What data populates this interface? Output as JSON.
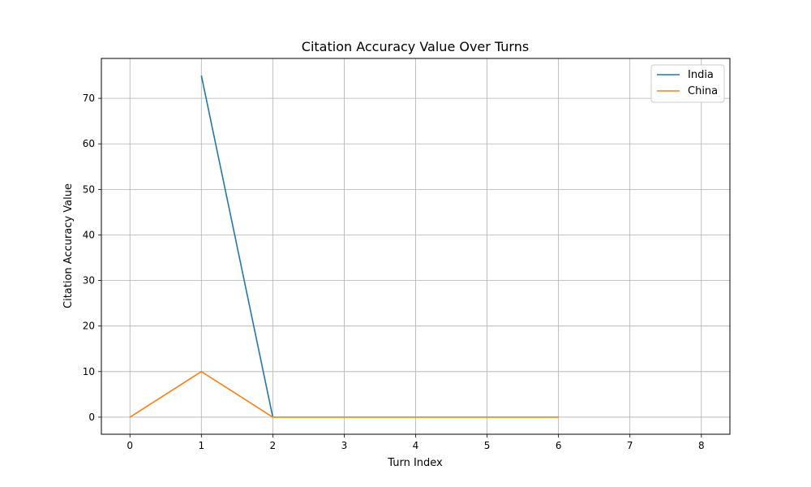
{
  "chart_data": {
    "type": "line",
    "title": "Citation Accuracy Value Over Turns",
    "xlabel": "Turn Index",
    "ylabel": "Citation Accuracy Value",
    "xlim": [
      -0.4,
      8.4
    ],
    "ylim": [
      -3.75,
      78.75
    ],
    "xticks": [
      0,
      1,
      2,
      3,
      4,
      5,
      6,
      7,
      8
    ],
    "yticks": [
      0,
      10,
      20,
      30,
      40,
      50,
      60,
      70
    ],
    "grid": true,
    "legend_position": "top-right",
    "series": [
      {
        "name": "India",
        "color": "#1f77b4",
        "x": [
          1,
          2
        ],
        "y": [
          75,
          0
        ]
      },
      {
        "name": "China",
        "color": "#ff7f0e",
        "x": [
          0,
          1,
          2,
          3,
          4,
          5,
          6
        ],
        "y": [
          0,
          10,
          0,
          0,
          0,
          0,
          0
        ]
      }
    ]
  }
}
